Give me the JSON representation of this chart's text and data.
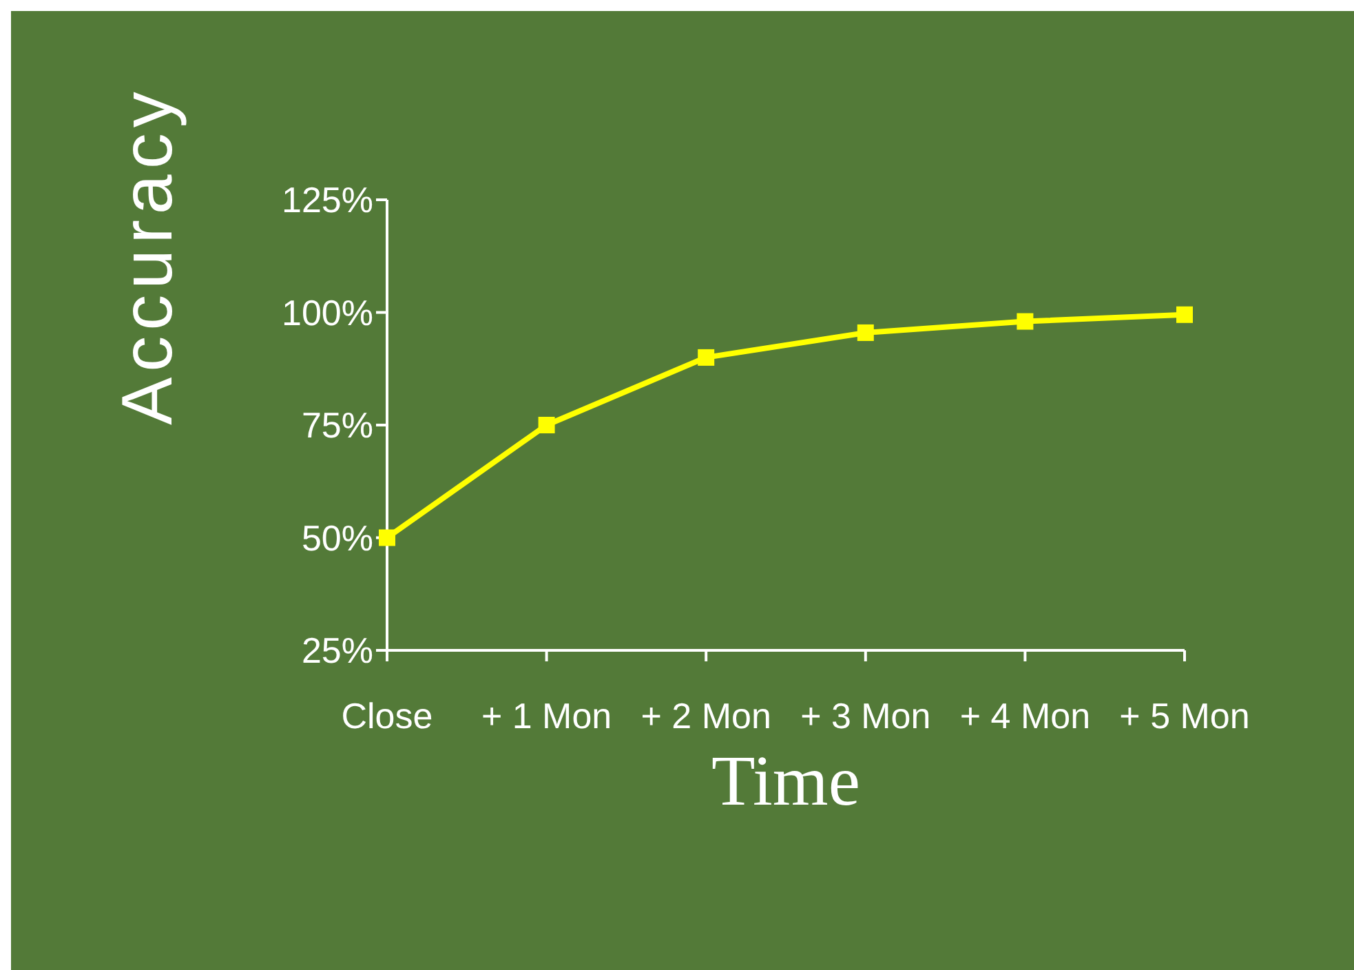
{
  "chart_data": {
    "type": "line",
    "xlabel": "Time",
    "ylabel": "Accuracy",
    "categories": [
      "Close",
      "+ 1 Mon",
      "+ 2 Mon",
      "+ 3 Mon",
      "+ 4 Mon",
      "+ 5 Mon"
    ],
    "series": [
      {
        "color": "#ffff00",
        "values": [
          50,
          75,
          90,
          95.5,
          98,
          99.5
        ]
      }
    ],
    "ylim": [
      25,
      125
    ],
    "yticks": [
      {
        "value": 25,
        "label": "25%"
      },
      {
        "value": 50,
        "label": "50%"
      },
      {
        "value": 75,
        "label": "75%"
      },
      {
        "value": 100,
        "label": "100%"
      },
      {
        "value": 125,
        "label": "125%"
      }
    ],
    "grid": false,
    "legend": false,
    "marker": "square",
    "line_style": "solid"
  }
}
